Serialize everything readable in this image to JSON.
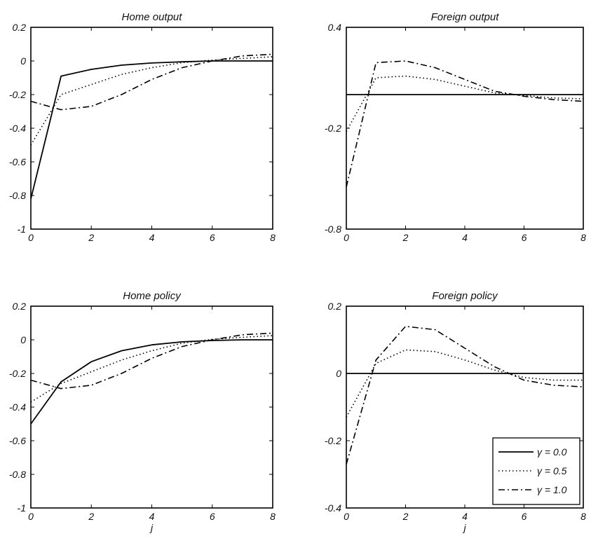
{
  "chart_data": [
    {
      "type": "line",
      "title": "Home output",
      "xlabel": "",
      "ylabel": "",
      "xlim": [
        0,
        8
      ],
      "ylim": [
        -1,
        0.2
      ],
      "xticks": [
        0,
        2,
        4,
        6,
        8
      ],
      "yticks": [
        0.2,
        0,
        -0.2,
        -0.4,
        -0.6,
        -0.8,
        -1
      ],
      "ytick_labels": [
        "0.2",
        "0",
        "-0.2",
        "-0.4",
        "-0.6",
        "-0.8",
        "-1"
      ],
      "zero_line": false,
      "grid": false,
      "x": [
        0,
        1,
        2,
        3,
        4,
        5,
        6,
        7,
        8
      ],
      "series": [
        {
          "style": "solid",
          "values": [
            -0.82,
            -0.09,
            -0.05,
            -0.025,
            -0.012,
            -0.005,
            0.0,
            0.0,
            0.0
          ]
        },
        {
          "style": "dotted",
          "values": [
            -0.5,
            -0.2,
            -0.14,
            -0.08,
            -0.04,
            -0.01,
            0.005,
            0.015,
            0.025
          ]
        },
        {
          "style": "dashdot",
          "values": [
            -0.24,
            -0.29,
            -0.27,
            -0.2,
            -0.11,
            -0.04,
            0.0,
            0.03,
            0.04
          ]
        }
      ]
    },
    {
      "type": "line",
      "title": "Foreign output",
      "xlabel": "",
      "ylabel": "",
      "xlim": [
        0,
        8
      ],
      "ylim": [
        -0.8,
        0.4
      ],
      "xticks": [
        0,
        2,
        4,
        6,
        8
      ],
      "yticks": [
        0.4,
        -0.2,
        -0.8
      ],
      "ytick_labels": [
        "0.4",
        "-0.2",
        "-0.8"
      ],
      "zero_line": true,
      "grid": false,
      "x": [
        0,
        1,
        2,
        3,
        4,
        5,
        6,
        7,
        8
      ],
      "series": [
        {
          "style": "solid",
          "values": [
            0,
            0,
            0,
            0,
            0,
            0,
            0,
            0,
            0
          ]
        },
        {
          "style": "dotted",
          "values": [
            -0.22,
            0.1,
            0.11,
            0.09,
            0.05,
            0.01,
            -0.005,
            -0.02,
            -0.025
          ]
        },
        {
          "style": "dashdot",
          "values": [
            -0.55,
            0.19,
            0.2,
            0.16,
            0.09,
            0.02,
            -0.01,
            -0.03,
            -0.04
          ]
        }
      ]
    },
    {
      "type": "line",
      "title": "Home policy",
      "xlabel": "j",
      "ylabel": "",
      "xlim": [
        0,
        8
      ],
      "ylim": [
        -1,
        0.2
      ],
      "xticks": [
        0,
        2,
        4,
        6,
        8
      ],
      "yticks": [
        0.2,
        0,
        -0.2,
        -0.4,
        -0.6,
        -0.8,
        -1
      ],
      "ytick_labels": [
        "0.2",
        "0",
        "-0.2",
        "-0.4",
        "-0.6",
        "-0.8",
        "-1"
      ],
      "zero_line": false,
      "grid": false,
      "x": [
        0,
        1,
        2,
        3,
        4,
        5,
        6,
        7,
        8
      ],
      "series": [
        {
          "style": "solid",
          "values": [
            -0.5,
            -0.25,
            -0.13,
            -0.065,
            -0.03,
            -0.012,
            -0.004,
            0.0,
            0.0
          ]
        },
        {
          "style": "dotted",
          "values": [
            -0.37,
            -0.26,
            -0.19,
            -0.12,
            -0.065,
            -0.02,
            0.003,
            0.015,
            0.025
          ]
        },
        {
          "style": "dashdot",
          "values": [
            -0.24,
            -0.29,
            -0.27,
            -0.2,
            -0.11,
            -0.04,
            0.0,
            0.03,
            0.04
          ]
        }
      ]
    },
    {
      "type": "line",
      "title": "Foreign policy",
      "xlabel": "j",
      "ylabel": "",
      "xlim": [
        0,
        8
      ],
      "ylim": [
        -0.4,
        0.2
      ],
      "xticks": [
        0,
        2,
        4,
        6,
        8
      ],
      "yticks": [
        0.2,
        0,
        -0.2,
        -0.4
      ],
      "ytick_labels": [
        "0.2",
        "0",
        "-0.2",
        "-0.4"
      ],
      "zero_line": true,
      "grid": false,
      "x": [
        0,
        1,
        2,
        3,
        4,
        5,
        6,
        7,
        8
      ],
      "series": [
        {
          "style": "solid",
          "values": [
            0,
            0,
            0,
            0,
            0,
            0,
            0,
            0,
            0
          ]
        },
        {
          "style": "dotted",
          "values": [
            -0.13,
            0.03,
            0.07,
            0.065,
            0.04,
            0.01,
            -0.012,
            -0.02,
            -0.02
          ]
        },
        {
          "style": "dashdot",
          "values": [
            -0.27,
            0.04,
            0.14,
            0.13,
            0.075,
            0.02,
            -0.02,
            -0.035,
            -0.04
          ]
        }
      ]
    }
  ],
  "legend": {
    "placement": "bottom-right of Foreign policy panel",
    "entries": [
      {
        "label": "γ = 0.0",
        "style": "solid"
      },
      {
        "label": "γ = 0.5",
        "style": "dotted"
      },
      {
        "label": "γ = 1.0",
        "style": "dashdot"
      }
    ]
  },
  "colors": {
    "line": "#000000",
    "axes": "#000000",
    "background": "#ffffff"
  }
}
